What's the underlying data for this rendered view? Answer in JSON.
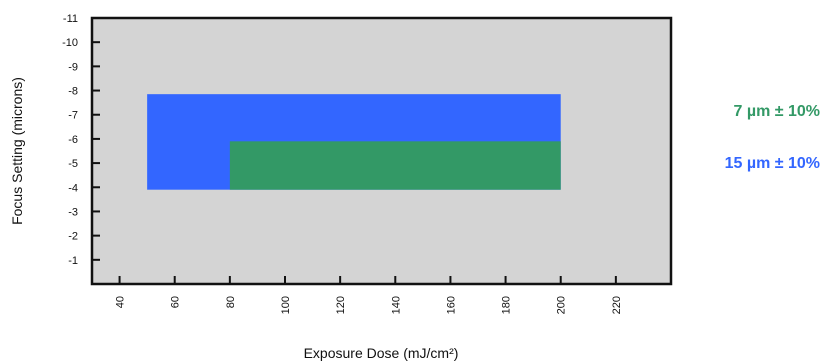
{
  "chart_data": {
    "type": "area",
    "xlabel": "Exposure Dose (mJ/cm²)",
    "ylabel": "Focus Setting (microns)",
    "xlim": [
      30,
      240
    ],
    "ylim": [
      -11,
      0
    ],
    "x_ticks": [
      40,
      60,
      80,
      100,
      120,
      140,
      160,
      180,
      200,
      220
    ],
    "y_ticks": [
      -11,
      -10,
      -9,
      -8,
      -7,
      -6,
      -5,
      -4,
      -3,
      -2,
      -1
    ],
    "grid": false,
    "plot_background": "#d4d4d4",
    "legend_position": "right",
    "series": [
      {
        "name": "15 µm ± 10%",
        "color": "#3366ff",
        "x_range": [
          50,
          200
        ],
        "y_range": [
          -7.85,
          -3.9
        ]
      },
      {
        "name": "7 µm ± 10%",
        "color": "#339966",
        "x_range": [
          80,
          200
        ],
        "y_range": [
          -5.9,
          -3.9
        ]
      }
    ],
    "legend": [
      {
        "label": "7 µm ± 10%",
        "color": "#339966"
      },
      {
        "label": "15 µm ± 10%",
        "color": "#3366ff"
      }
    ]
  }
}
